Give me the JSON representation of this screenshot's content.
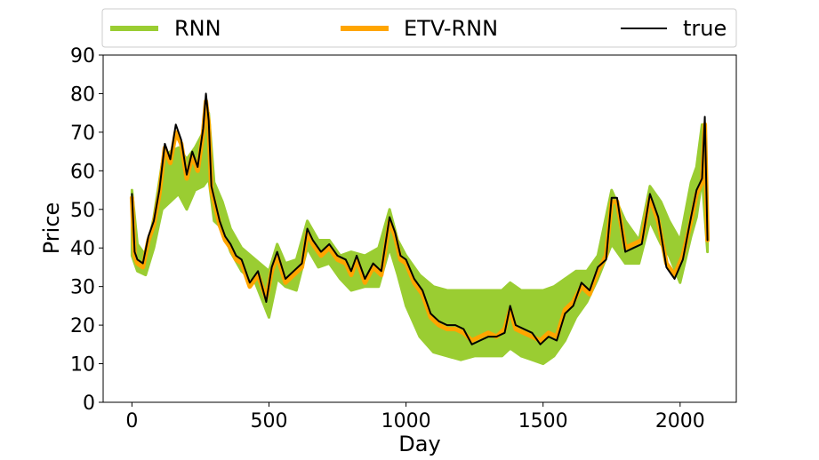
{
  "chart_data": {
    "type": "line",
    "xlabel": "Day",
    "ylabel": "Price",
    "xlim": [
      -105,
      2205
    ],
    "ylim": [
      0,
      90
    ],
    "x_ticks": [
      0,
      500,
      1000,
      1500,
      2000
    ],
    "y_ticks": [
      0,
      10,
      20,
      30,
      40,
      50,
      60,
      70,
      80,
      90
    ],
    "grid": false,
    "legend_position": "top, above plot",
    "series": [
      {
        "name": "RNN",
        "color": "#9acd32",
        "style": "band",
        "x": [
          0,
          20,
          50,
          80,
          110,
          140,
          170,
          200,
          230,
          260,
          280,
          300,
          330,
          360,
          400,
          450,
          500,
          530,
          560,
          600,
          640,
          680,
          720,
          760,
          800,
          850,
          900,
          940,
          970,
          1000,
          1050,
          1100,
          1150,
          1200,
          1250,
          1300,
          1350,
          1380,
          1420,
          1460,
          1500,
          1540,
          1580,
          1620,
          1660,
          1700,
          1750,
          1800,
          1850,
          1890,
          1930,
          1960,
          2000,
          2040,
          2060,
          2080,
          2100
        ],
        "upper": [
          55,
          41,
          38,
          48,
          62,
          65,
          66,
          63,
          66,
          70,
          75,
          57,
          52,
          45,
          40,
          37,
          34,
          41,
          36,
          37,
          47,
          42,
          42,
          38,
          39,
          38,
          40,
          50,
          42,
          38,
          33,
          30,
          29,
          29,
          29,
          29,
          29,
          31,
          29,
          29,
          29,
          30,
          32,
          34,
          34,
          38,
          55,
          47,
          42,
          56,
          52,
          47,
          42,
          57,
          61,
          72,
          43
        ],
        "lower": [
          38,
          34,
          33,
          40,
          50,
          52,
          54,
          50,
          55,
          56,
          58,
          47,
          45,
          39,
          34,
          31,
          22,
          32,
          30,
          29,
          40,
          35,
          36,
          32,
          29,
          30,
          30,
          40,
          33,
          25,
          17,
          13,
          12,
          11,
          12,
          12,
          12,
          14,
          12,
          11,
          10,
          12,
          16,
          22,
          26,
          32,
          41,
          36,
          36,
          47,
          41,
          38,
          31,
          43,
          48,
          58,
          39
        ]
      },
      {
        "name": "ETV-RNN",
        "color": "#ffa500",
        "style": "line",
        "x": [
          0,
          10,
          20,
          40,
          60,
          80,
          100,
          120,
          140,
          160,
          180,
          200,
          220,
          240,
          260,
          270,
          280,
          290,
          300,
          320,
          340,
          360,
          380,
          400,
          430,
          460,
          490,
          510,
          530,
          560,
          590,
          620,
          640,
          660,
          690,
          720,
          750,
          780,
          800,
          820,
          850,
          880,
          910,
          940,
          960,
          980,
          1000,
          1030,
          1060,
          1090,
          1120,
          1150,
          1180,
          1210,
          1240,
          1270,
          1300,
          1330,
          1360,
          1380,
          1400,
          1430,
          1460,
          1490,
          1520,
          1550,
          1580,
          1610,
          1640,
          1670,
          1700,
          1730,
          1750,
          1770,
          1800,
          1830,
          1860,
          1890,
          1920,
          1950,
          1980,
          2010,
          2040,
          2060,
          2080,
          2090,
          2100
        ],
        "values": [
          53,
          38,
          36,
          35,
          42,
          46,
          54,
          66,
          62,
          70,
          67,
          58,
          64,
          60,
          70,
          78,
          72,
          55,
          52,
          46,
          42,
          40,
          37,
          36,
          30,
          33,
          27,
          34,
          38,
          31,
          33,
          35,
          44,
          41,
          38,
          40,
          37,
          36,
          33,
          37,
          31,
          35,
          33,
          47,
          43,
          37,
          36,
          31,
          28,
          22,
          20,
          19,
          19,
          18,
          16,
          17,
          18,
          17,
          19,
          24,
          19,
          18,
          17,
          16,
          18,
          17,
          24,
          26,
          30,
          28,
          34,
          38,
          52,
          52,
          40,
          41,
          42,
          53,
          47,
          36,
          33,
          38,
          47,
          54,
          57,
          72,
          42
        ],
        "width": 5
      },
      {
        "name": "true",
        "color": "#000000",
        "style": "line",
        "x": [
          0,
          10,
          20,
          40,
          60,
          80,
          100,
          120,
          140,
          160,
          180,
          200,
          220,
          240,
          260,
          270,
          280,
          290,
          300,
          320,
          340,
          360,
          380,
          400,
          430,
          460,
          490,
          510,
          530,
          560,
          590,
          620,
          640,
          660,
          690,
          720,
          750,
          780,
          800,
          820,
          850,
          880,
          910,
          940,
          960,
          980,
          1000,
          1030,
          1060,
          1090,
          1120,
          1150,
          1180,
          1210,
          1240,
          1270,
          1300,
          1330,
          1360,
          1380,
          1400,
          1430,
          1460,
          1490,
          1520,
          1550,
          1580,
          1610,
          1640,
          1670,
          1700,
          1730,
          1750,
          1770,
          1800,
          1830,
          1860,
          1890,
          1920,
          1950,
          1980,
          2010,
          2040,
          2060,
          2080,
          2090,
          2100
        ],
        "values": [
          54,
          39,
          37,
          36,
          43,
          47,
          55,
          67,
          63,
          72,
          68,
          59,
          65,
          61,
          71,
          80,
          73,
          56,
          53,
          47,
          43,
          41,
          38,
          37,
          31,
          34,
          26,
          35,
          39,
          32,
          34,
          36,
          45,
          42,
          39,
          41,
          38,
          37,
          34,
          38,
          32,
          36,
          34,
          48,
          44,
          38,
          37,
          32,
          29,
          23,
          21,
          20,
          20,
          19,
          15,
          16,
          17,
          17,
          18,
          25,
          20,
          19,
          18,
          15,
          17,
          16,
          23,
          25,
          31,
          29,
          35,
          37,
          53,
          53,
          39,
          40,
          41,
          54,
          48,
          35,
          32,
          37,
          48,
          55,
          58,
          74,
          42
        ],
        "width": 2
      }
    ]
  }
}
